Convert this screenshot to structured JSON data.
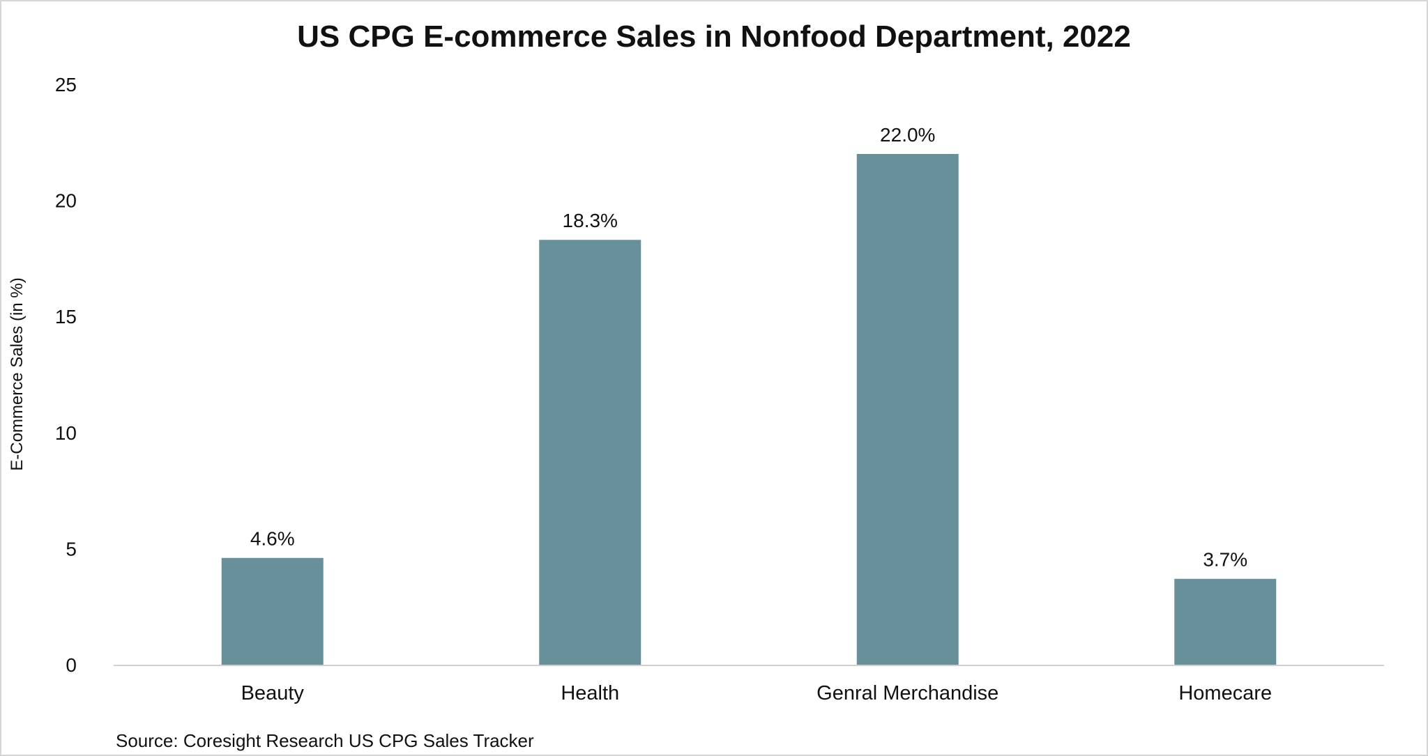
{
  "chart_data": {
    "type": "bar",
    "title": "US CPG E-commerce Sales in Nonfood Department, 2022",
    "xlabel": "",
    "ylabel": "E-Commerce Sales (in %)",
    "categories": [
      "Beauty",
      "Health",
      "Genral Merchandise",
      "Homecare"
    ],
    "values": [
      4.6,
      18.3,
      22.0,
      3.7
    ],
    "data_labels": [
      "4.6%",
      "18.3%",
      "22.0%",
      "3.7%"
    ],
    "ylim": [
      0,
      25
    ],
    "yticks": [
      "0",
      "5",
      "10",
      "15",
      "20",
      "25"
    ],
    "grid": false,
    "bar_color": "#67909a",
    "source": "Source: Coresight Research US CPG Sales Tracker"
  }
}
